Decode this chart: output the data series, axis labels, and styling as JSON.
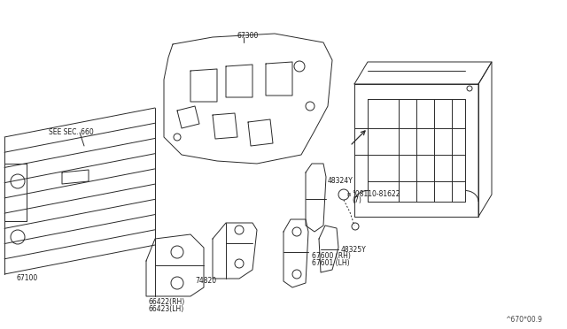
{
  "background_color": "#ffffff",
  "line_color": "#2a2a2a",
  "text_color": "#1a1a1a",
  "fig_width": 6.4,
  "fig_height": 3.72,
  "dpi": 100,
  "watermark": "^670*00.9",
  "labels": {
    "see_sec": "SEE SEC. 660",
    "p67300": "67300",
    "p67100": "67100",
    "p66422": "66422(RH)",
    "p66423": "66423(LH)",
    "p74820": "74820",
    "p48324": "48324Y",
    "p48325": "48325Y",
    "p08110_a": "°08110-81622",
    "p08110_b": "(7)",
    "p67600": "67600 (RH)",
    "p67601": "67601 (LH)"
  }
}
